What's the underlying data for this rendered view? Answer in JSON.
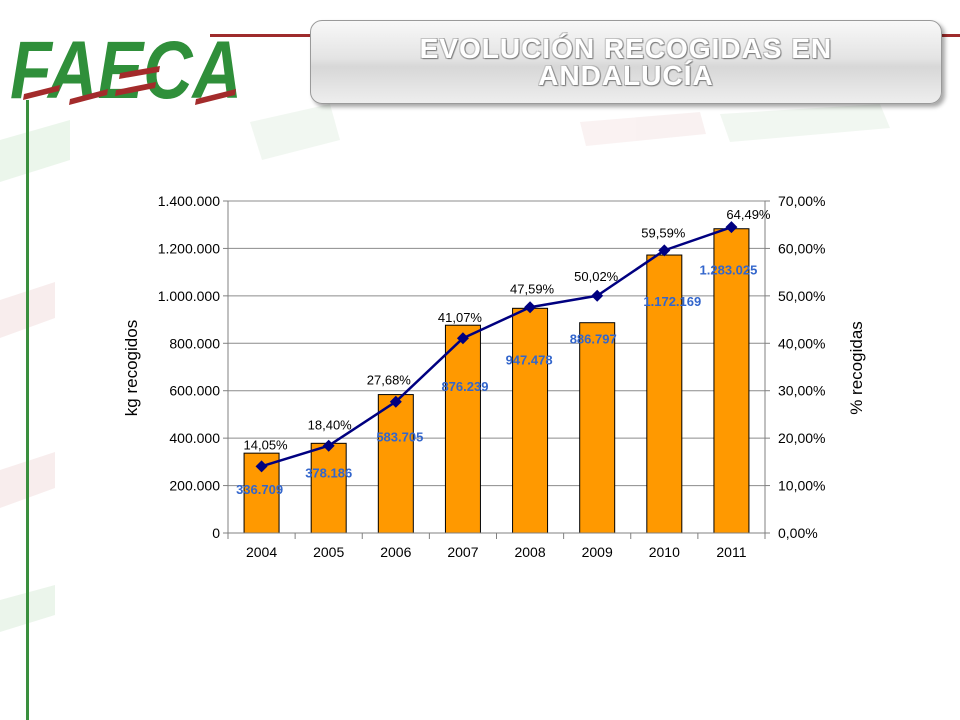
{
  "logo": {
    "text": "FAECA"
  },
  "header": {
    "title_line1": "EVOLUCIÓN RECOGIDAS EN",
    "title_line2": "ANDALUCÍA"
  },
  "theme": {
    "brand_green": "#2F8F3A",
    "brand_red": "#9E2B2C"
  },
  "chart_data": {
    "type": "bar",
    "categories": [
      "2004",
      "2005",
      "2006",
      "2007",
      "2008",
      "2009",
      "2010",
      "2011"
    ],
    "series": [
      {
        "type": "bar",
        "axis": "left",
        "color": "#FF9900",
        "label_color": "#3366CC",
        "values": [
          336709,
          378186,
          583705,
          876239,
          947478,
          886797,
          1172169,
          1283025
        ]
      },
      {
        "type": "line",
        "axis": "right",
        "color": "#000080",
        "marker": "diamond",
        "unit": "%",
        "values": [
          14.05,
          18.4,
          27.68,
          41.07,
          47.59,
          50.02,
          59.59,
          64.49
        ]
      }
    ],
    "xlabel": "",
    "ylabel": "kg recogidos",
    "y2label": "% recogidas",
    "ylim": [
      0,
      1400000
    ],
    "y2lim": [
      0,
      70
    ],
    "yticks": [
      0,
      200000,
      400000,
      600000,
      800000,
      1000000,
      1200000,
      1400000
    ],
    "y2ticks": [
      0,
      10,
      20,
      30,
      40,
      50,
      60,
      70
    ],
    "grid": true,
    "legend": "none",
    "data_labels": true
  }
}
